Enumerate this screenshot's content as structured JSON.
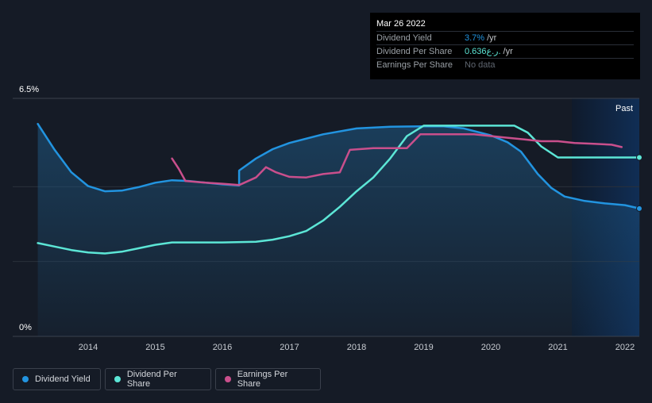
{
  "chart_data": {
    "type": "line",
    "ylabel_top": "6.5%",
    "ylabel_bottom": "0%",
    "ylim": [
      0,
      6.5
    ],
    "xlim": [
      2013.25,
      2022.25
    ],
    "x_ticks": [
      "2014",
      "2015",
      "2016",
      "2017",
      "2018",
      "2019",
      "2020",
      "2021",
      "2022"
    ],
    "past_label": "Past",
    "series": [
      {
        "name": "Dividend Yield",
        "color": "#2294e0",
        "points": [
          [
            2013.25,
            6.15
          ],
          [
            2013.5,
            5.4
          ],
          [
            2013.75,
            4.75
          ],
          [
            2014.0,
            4.35
          ],
          [
            2014.25,
            4.2
          ],
          [
            2014.5,
            4.22
          ],
          [
            2014.75,
            4.32
          ],
          [
            2015.0,
            4.45
          ],
          [
            2015.25,
            4.52
          ],
          [
            2015.5,
            4.5
          ],
          [
            2015.75,
            4.45
          ],
          [
            2016.0,
            4.4
          ],
          [
            2016.25,
            4.37
          ],
          [
            2016.25,
            4.8
          ],
          [
            2016.5,
            5.15
          ],
          [
            2016.75,
            5.42
          ],
          [
            2017.0,
            5.6
          ],
          [
            2017.5,
            5.85
          ],
          [
            2018.0,
            6.02
          ],
          [
            2018.5,
            6.07
          ],
          [
            2019.0,
            6.08
          ],
          [
            2019.3,
            6.08
          ],
          [
            2019.6,
            6.02
          ],
          [
            2020.0,
            5.82
          ],
          [
            2020.25,
            5.62
          ],
          [
            2020.45,
            5.35
          ],
          [
            2020.7,
            4.7
          ],
          [
            2020.9,
            4.3
          ],
          [
            2021.1,
            4.05
          ],
          [
            2021.4,
            3.92
          ],
          [
            2021.7,
            3.85
          ],
          [
            2022.0,
            3.8
          ],
          [
            2022.22,
            3.7
          ]
        ]
      },
      {
        "name": "Dividend Per Share",
        "color": "#5ce6d6",
        "points": [
          [
            2013.25,
            2.7
          ],
          [
            2013.5,
            2.6
          ],
          [
            2013.75,
            2.5
          ],
          [
            2014.0,
            2.43
          ],
          [
            2014.25,
            2.4
          ],
          [
            2014.5,
            2.45
          ],
          [
            2014.75,
            2.55
          ],
          [
            2015.0,
            2.65
          ],
          [
            2015.25,
            2.72
          ],
          [
            2016.0,
            2.72
          ],
          [
            2016.5,
            2.74
          ],
          [
            2016.75,
            2.8
          ],
          [
            2017.0,
            2.9
          ],
          [
            2017.25,
            3.05
          ],
          [
            2017.5,
            3.35
          ],
          [
            2017.75,
            3.75
          ],
          [
            2018.0,
            4.2
          ],
          [
            2018.25,
            4.6
          ],
          [
            2018.5,
            5.15
          ],
          [
            2018.75,
            5.8
          ],
          [
            2019.0,
            6.1
          ],
          [
            2019.15,
            6.1
          ],
          [
            2020.35,
            6.1
          ],
          [
            2020.55,
            5.9
          ],
          [
            2020.75,
            5.5
          ],
          [
            2021.0,
            5.18
          ],
          [
            2021.25,
            5.18
          ],
          [
            2022.22,
            5.18
          ]
        ]
      },
      {
        "name": "Earnings Per Share",
        "color": "#c94f8c",
        "points": [
          [
            2015.25,
            5.15
          ],
          [
            2015.35,
            4.85
          ],
          [
            2015.45,
            4.5
          ],
          [
            2015.75,
            4.45
          ],
          [
            2016.0,
            4.42
          ],
          [
            2016.25,
            4.38
          ],
          [
            2016.5,
            4.6
          ],
          [
            2016.65,
            4.9
          ],
          [
            2016.8,
            4.75
          ],
          [
            2017.0,
            4.62
          ],
          [
            2017.25,
            4.6
          ],
          [
            2017.5,
            4.7
          ],
          [
            2017.75,
            4.75
          ],
          [
            2017.9,
            5.4
          ],
          [
            2018.25,
            5.45
          ],
          [
            2018.75,
            5.45
          ],
          [
            2018.95,
            5.85
          ],
          [
            2019.25,
            5.85
          ],
          [
            2019.75,
            5.85
          ],
          [
            2020.0,
            5.8
          ],
          [
            2020.5,
            5.7
          ],
          [
            2020.75,
            5.65
          ],
          [
            2021.0,
            5.65
          ],
          [
            2021.25,
            5.6
          ],
          [
            2021.5,
            5.58
          ],
          [
            2021.8,
            5.55
          ],
          [
            2021.95,
            5.48
          ]
        ]
      }
    ],
    "end_markers": [
      "Dividend Yield",
      "Dividend Per Share"
    ]
  },
  "tooltip": {
    "date": "Mar 26 2022",
    "rows": [
      {
        "label": "Dividend Yield",
        "value": "3.7%",
        "unit": "/yr"
      },
      {
        "label": "Dividend Per Share",
        "value": "0.636ر.ع.",
        "unit": "/yr"
      },
      {
        "label": "Earnings Per Share",
        "value": "No data",
        "unit": ""
      }
    ]
  },
  "legend": [
    {
      "label": "Dividend Yield",
      "color": "#2294e0"
    },
    {
      "label": "Dividend Per Share",
      "color": "#5ce6d6"
    },
    {
      "label": "Earnings Per Share",
      "color": "#c94f8c"
    }
  ]
}
